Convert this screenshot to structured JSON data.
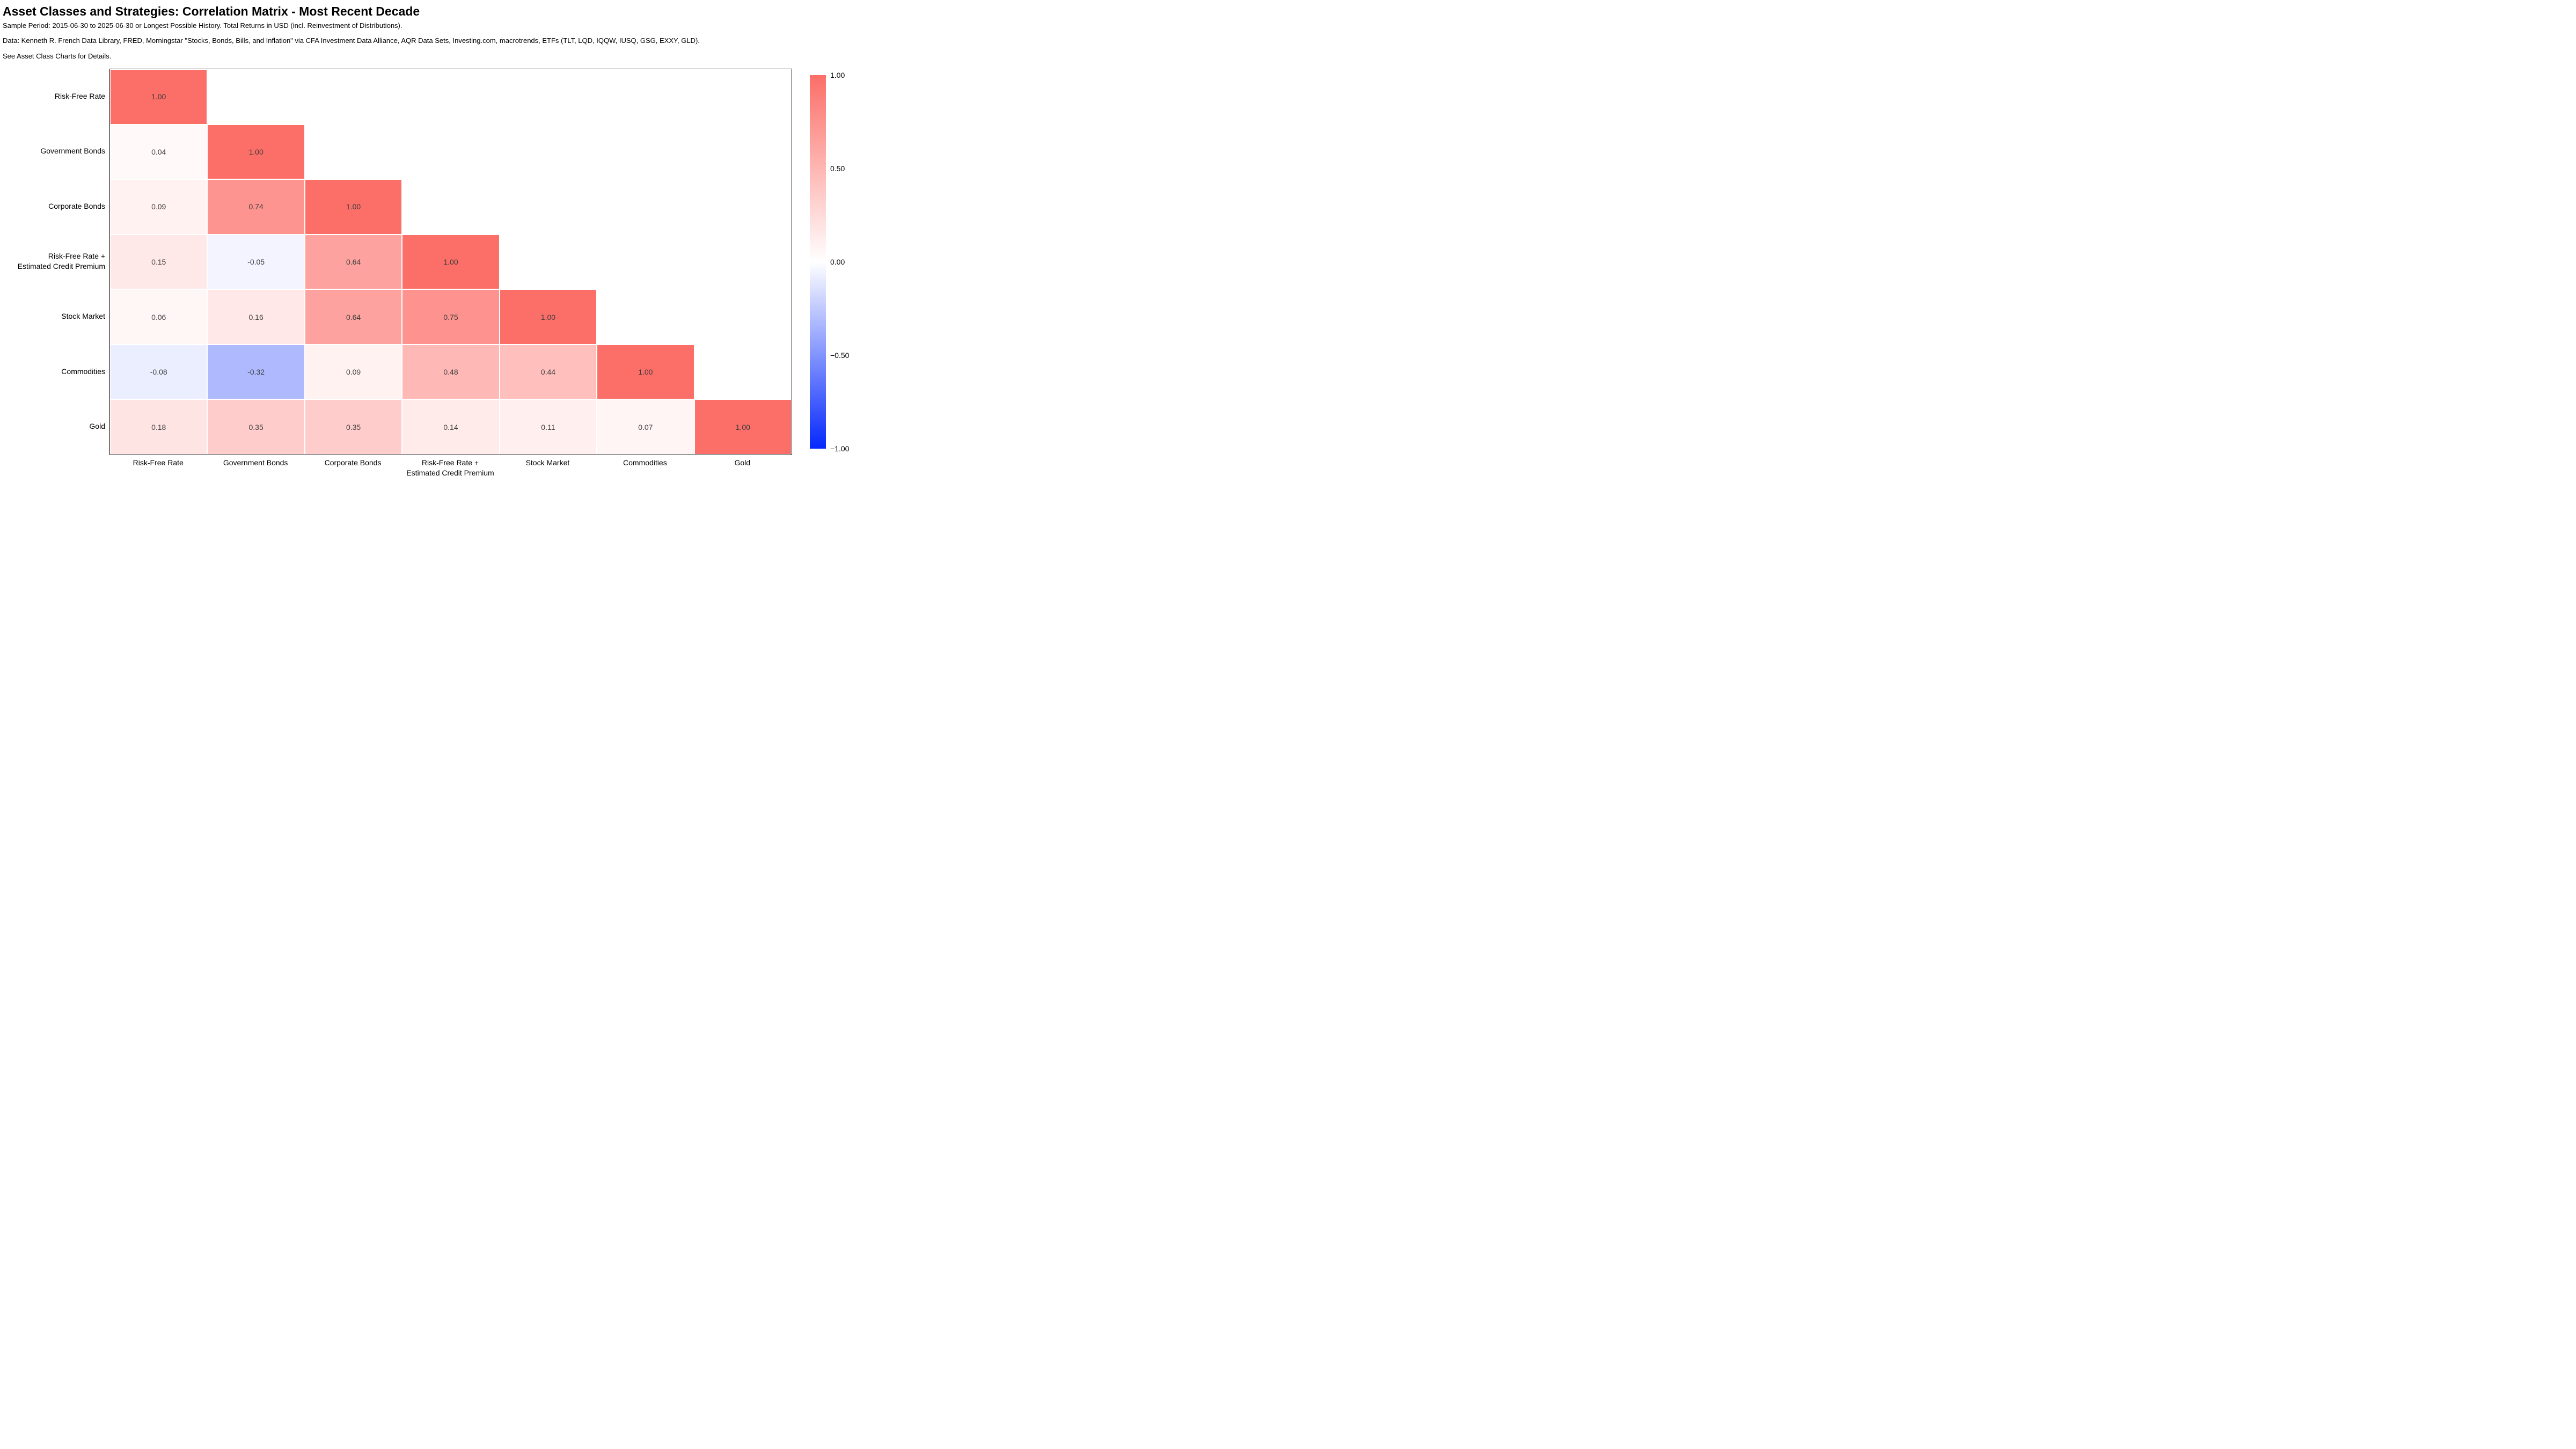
{
  "chart_data": {
    "type": "heatmap",
    "title": "Asset Classes and Strategies: Correlation Matrix - Most Recent Decade",
    "subtitles": [
      "Sample Period: 2015-06-30 to 2025-06-30 or Longest Possible History. Total Returns in USD (incl. Reinvestment of Distributions).",
      "Data: Kenneth R. French Data Library, FRED, Morningstar \"Stocks, Bonds, Bills, and Inflation\" via CFA Investment Data Alliance, AQR Data Sets, Investing.com, macrotrends, ETFs (TLT, LQD, IQQW, IUSQ, GSG, EXXY, GLD).",
      "See Asset Class Charts for Details."
    ],
    "categories": [
      "Risk-Free Rate",
      "Government Bonds",
      "Corporate Bonds",
      "Risk-Free Rate +\nEstimated Credit Premium",
      "Stock Market",
      "Commodities",
      "Gold"
    ],
    "triangle": "lower",
    "value_decimals": 2,
    "matrix_lower_triangle": [
      [
        1.0
      ],
      [
        0.04,
        1.0
      ],
      [
        0.09,
        0.74,
        1.0
      ],
      [
        0.15,
        -0.05,
        0.64,
        1.0
      ],
      [
        0.06,
        0.16,
        0.64,
        0.75,
        1.0
      ],
      [
        -0.08,
        -0.32,
        0.09,
        0.48,
        0.44,
        1.0
      ],
      [
        0.18,
        0.35,
        0.35,
        0.14,
        0.11,
        0.07,
        1.0
      ]
    ],
    "colorbar": {
      "min": -1,
      "max": 1,
      "tick_values": [
        1.0,
        0.5,
        0.0,
        -0.5,
        -1.0
      ],
      "tick_labels": [
        "1.00",
        "0.50",
        "0.00",
        "−0.50",
        "−1.00"
      ]
    },
    "colors": {
      "max_color": "#fc6e68",
      "mid_color": "#ffffff",
      "min_color": "#0528fc",
      "annotation_text": "#3c3c3c",
      "axis_text": "#000000",
      "frame": "#000000",
      "grid": "#ffffff"
    }
  }
}
